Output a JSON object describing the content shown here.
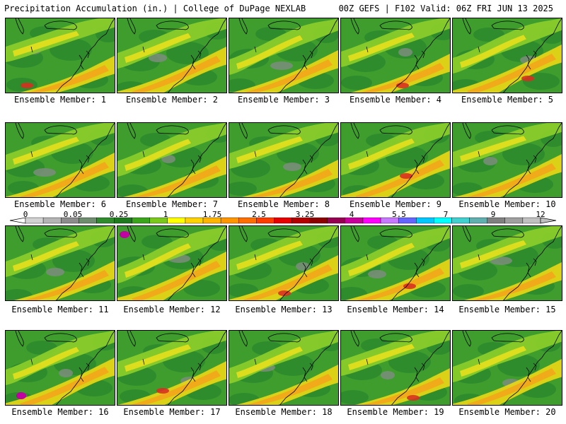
{
  "header": {
    "left": "Precipitation Accumulation (in.) | College of DuPage NEXLAB",
    "right": "00Z GEFS | F102 Valid: 06Z FRI JUN 13 2025"
  },
  "members": [
    {
      "label": "Ensemble Member: 1"
    },
    {
      "label": "Ensemble Member: 2"
    },
    {
      "label": "Ensemble Member: 3"
    },
    {
      "label": "Ensemble Member: 4"
    },
    {
      "label": "Ensemble Member: 5"
    },
    {
      "label": "Ensemble Member: 6"
    },
    {
      "label": "Ensemble Member: 7"
    },
    {
      "label": "Ensemble Member: 8"
    },
    {
      "label": "Ensemble Member: 9"
    },
    {
      "label": "Ensemble Member: 10"
    },
    {
      "label": "Ensemble Member: 11"
    },
    {
      "label": "Ensemble Member: 12"
    },
    {
      "label": "Ensemble Member: 13"
    },
    {
      "label": "Ensemble Member: 14"
    },
    {
      "label": "Ensemble Member: 15"
    },
    {
      "label": "Ensemble Member: 16"
    },
    {
      "label": "Ensemble Member: 17"
    },
    {
      "label": "Ensemble Member: 18"
    },
    {
      "label": "Ensemble Member: 19"
    },
    {
      "label": "Ensemble Member: 20"
    }
  ],
  "scale": {
    "ticks": [
      "0",
      "0.05",
      "0.25",
      "1",
      "1.75",
      "2.5",
      "3.25",
      "4",
      "5.5",
      "7",
      "9",
      "12"
    ],
    "colors": [
      "#d2d2d2",
      "#b4b4b4",
      "#8c8c8c",
      "#6e8c6e",
      "#2e8b2e",
      "#1e7a1e",
      "#3aa51a",
      "#7ac81a",
      "#ffff00",
      "#ffd200",
      "#ffb400",
      "#ff9600",
      "#ff6e00",
      "#ff3c00",
      "#e60000",
      "#b40000",
      "#8c0000",
      "#960050",
      "#c8009c",
      "#ff00ff",
      "#c878ff",
      "#6464ff",
      "#00c8ff",
      "#00ffff",
      "#40d0d0",
      "#60b0b0",
      "#808080",
      "#a0a0a0",
      "#c0c0c0"
    ]
  }
}
